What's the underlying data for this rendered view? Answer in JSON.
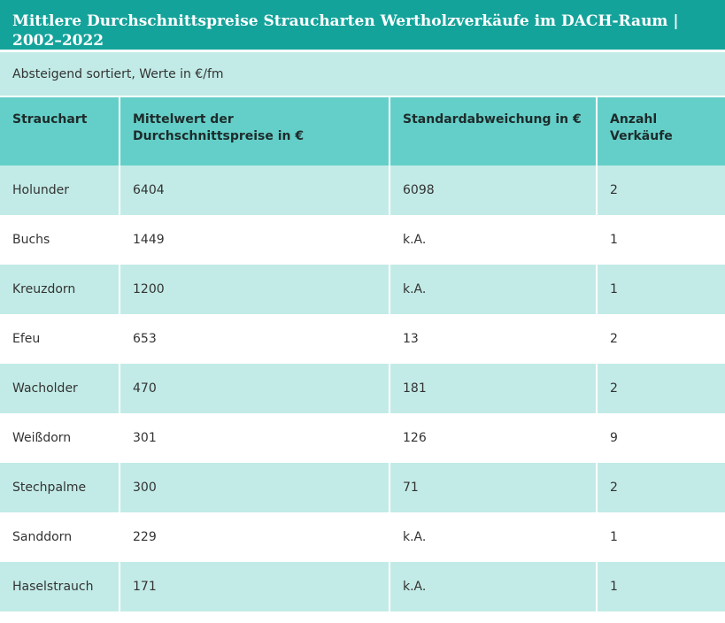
{
  "chart_data": {
    "type": "table",
    "title": "Mittlere Durchschnittspreise Straucharten Wertholzverkäufe im DACH-Raum | 2002–2022",
    "subtitle": "Absteigend sortiert, Werte in €/fm",
    "columns": [
      "Strauchart",
      "Mittelwert der Durchschnittspreise in €",
      "Standardabweichung in €",
      "Anzahl Verkäufe"
    ],
    "rows": [
      [
        "Holunder",
        "6404",
        "6098",
        "2"
      ],
      [
        "Buchs",
        "1449",
        "k.A.",
        "1"
      ],
      [
        "Kreuzdorn",
        "1200",
        "k.A.",
        "1"
      ],
      [
        "Efeu",
        "653",
        "13",
        "2"
      ],
      [
        "Wacholder",
        "470",
        "181",
        "2"
      ],
      [
        "Weißdorn",
        "301",
        "126",
        "9"
      ],
      [
        "Stechpalme",
        "300",
        "71",
        "2"
      ],
      [
        "Sanddorn",
        "229",
        "k.A.",
        "1"
      ],
      [
        "Haselstrauch",
        "171",
        "k.A.",
        "1"
      ]
    ]
  },
  "colors": {
    "title_bg": "#14a39b",
    "header_bg": "#64cfc8",
    "row_tint": "#c2ebe7"
  }
}
